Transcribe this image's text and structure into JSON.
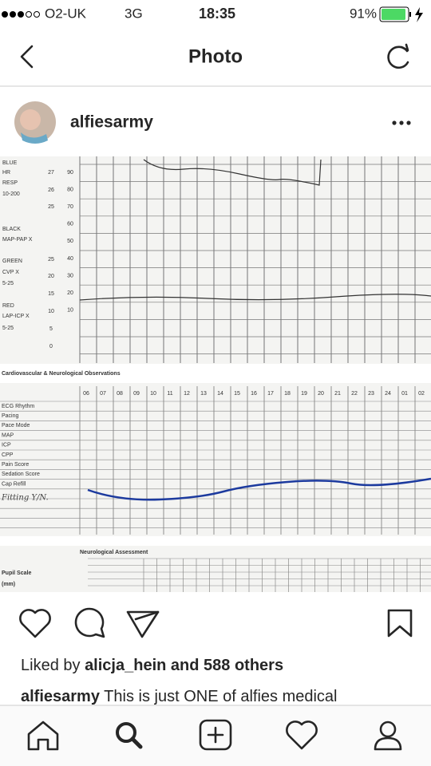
{
  "status_bar": {
    "carrier": "O2-UK",
    "network": "3G",
    "time": "18:35",
    "battery": "91%"
  },
  "nav": {
    "title": "Photo"
  },
  "post": {
    "username": "alfiesarmy",
    "photo": {
      "legend_labels": [
        "BLUE",
        "HR",
        "RESP",
        "10-200",
        "BLACK",
        "MAP-PAP X",
        "GREEN",
        "CVP X",
        "5-25",
        "RED",
        "LAP-ICP X",
        "5-25"
      ],
      "scale_left": [
        "27",
        "26",
        "25",
        "25",
        "20",
        "15",
        "10",
        "5",
        "0"
      ],
      "scale_right": [
        "90",
        "80",
        "70",
        "60",
        "50",
        "40",
        "30",
        "20",
        "10"
      ],
      "section_title": "Cardiovascular & Neurological Observations",
      "hours": [
        "06",
        "07",
        "08",
        "09",
        "10",
        "11",
        "12",
        "13",
        "14",
        "15",
        "16",
        "17",
        "18",
        "19",
        "20",
        "21",
        "22",
        "23",
        "24",
        "01",
        "02"
      ],
      "rows": [
        "ECG Rhythm",
        "Pacing",
        "Pace Mode",
        "MAP",
        "ICP",
        "CPP",
        "Pain Score",
        "Sedation Score",
        "Cap Refill"
      ],
      "handwritten_row": "Fitting Y/N.",
      "neuro_title": "Neurological Assessment",
      "pupil_label": "Pupil Scale",
      "pupil_unit": "(mm)"
    },
    "likes": {
      "prefix": "Liked by",
      "user": "alicja_hein",
      "suffix": "and 588 others"
    },
    "caption": {
      "username": "alfiesarmy",
      "text": "This is just ONE of alfies medical"
    }
  }
}
